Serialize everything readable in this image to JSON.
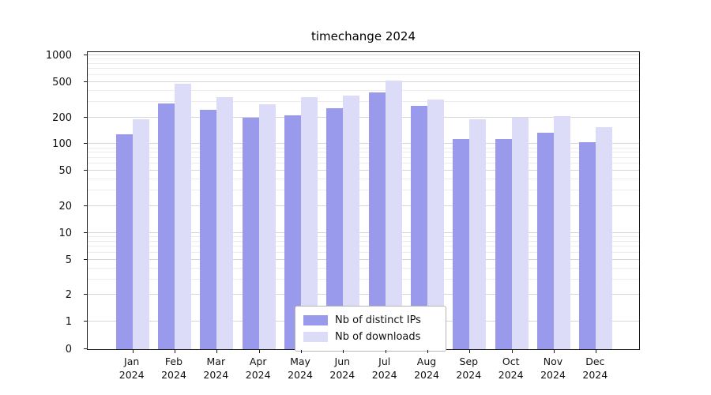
{
  "chart_data": {
    "type": "bar",
    "title": "timechange 2024",
    "year": "2024",
    "categories": [
      "Jan",
      "Feb",
      "Mar",
      "Apr",
      "May",
      "Jun",
      "Jul",
      "Aug",
      "Sep",
      "Oct",
      "Nov",
      "Dec"
    ],
    "series": [
      {
        "name": "Nb of distinct IPs",
        "color": "#9a9aec",
        "values": [
          130,
          285,
          245,
          200,
          210,
          255,
          380,
          270,
          115,
          115,
          135,
          105
        ]
      },
      {
        "name": "Nb of downloads",
        "color": "#dcdcf9",
        "values": [
          190,
          480,
          340,
          280,
          335,
          355,
          520,
          320,
          190,
          200,
          205,
          155
        ]
      }
    ],
    "yticks": [
      0,
      1,
      2,
      5,
      10,
      20,
      50,
      100,
      200,
      500,
      1000
    ],
    "yscale": "symlog",
    "ylim": [
      0,
      1000
    ],
    "xlabel": "",
    "ylabel": "",
    "grid": "horizontal",
    "legend_position": "lower center"
  }
}
